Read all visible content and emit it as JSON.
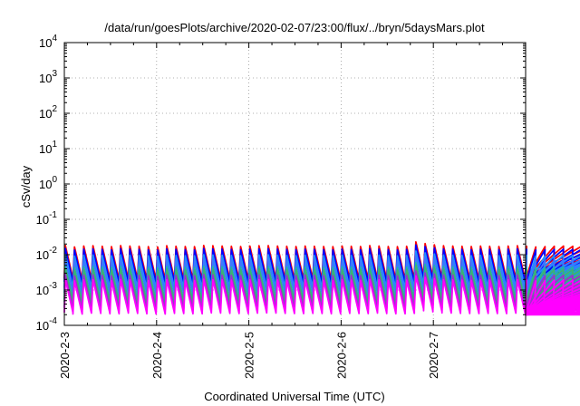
{
  "chart_data": {
    "type": "line",
    "title": "/data/run/goesPlots/archive/2020-02-07/23:00/flux/../bryn/5daysMars.plot",
    "xlabel": "Coordinated Universal Time (UTC)",
    "ylabel": "cSv/day",
    "y_scale": "log",
    "ylim": [
      0.0001,
      10000
    ],
    "xlim": [
      "2020-02-03 00:00",
      "2020-02-08 00:00"
    ],
    "x_ticks": [
      "2020-2-3",
      "2020-2-4",
      "2020-2-5",
      "2020-2-6",
      "2020-2-7"
    ],
    "y_ticks": [
      {
        "value": 0.0001,
        "base": "10",
        "exp": "-4"
      },
      {
        "value": 0.001,
        "base": "10",
        "exp": "-3"
      },
      {
        "value": 0.01,
        "base": "10",
        "exp": "-2"
      },
      {
        "value": 0.1,
        "base": "10",
        "exp": "-1"
      },
      {
        "value": 1,
        "base": "10",
        "exp": "0"
      },
      {
        "value": 10,
        "base": "10",
        "exp": "1"
      },
      {
        "value": 100,
        "base": "10",
        "exp": "2"
      },
      {
        "value": 1000,
        "base": "10",
        "exp": "3"
      },
      {
        "value": 10000,
        "base": "10",
        "exp": "4"
      }
    ],
    "grid": true,
    "legend": "none",
    "sawtooth": {
      "period_hours": 2.4,
      "peaks": [
        0.0182,
        0.0165,
        0.0175,
        0.0178,
        0.0172,
        0.0168,
        0.018,
        0.0175,
        0.0172,
        0.0168,
        0.0165,
        0.0178,
        0.0172,
        0.017,
        0.0168,
        0.0182,
        0.0178,
        0.0175,
        0.0172,
        0.017,
        0.0175,
        0.0178,
        0.018,
        0.0175,
        0.0172,
        0.017,
        0.0175,
        0.0172,
        0.017,
        0.0168,
        0.0175,
        0.0172,
        0.017,
        0.018,
        0.0175,
        0.017,
        0.0168,
        0.0172,
        0.023,
        0.0205,
        0.019,
        0.0178,
        0.0175,
        0.0172,
        0.017,
        0.0175,
        0.0172,
        0.017,
        0.0175,
        0.0178,
        0.0172,
        0.0165,
        0.0168,
        0.0172,
        0.0175,
        0.0172,
        0.0175,
        0.018,
        0.0178,
        0.0175,
        0.0172,
        0.017,
        0.0168,
        0.0172,
        0.0175,
        0.0172,
        0.0175,
        0.0172,
        0.017,
        0.0168,
        0.017,
        0.0175,
        0.0172,
        0.017,
        0.0175,
        0.0172,
        0.017,
        0.0168,
        0.0172,
        0.017,
        0.0168,
        0.0172,
        0.0175,
        0.0172,
        0.017,
        0.0168,
        0.017,
        0.0172,
        0.0175,
        0.0172,
        0.017,
        0.0168,
        0.0165,
        0.0168,
        0.0172,
        0.017,
        0.0168,
        0.0172,
        0.0168,
        0.0165,
        0.0163,
        0.0165,
        0.0165,
        0.0162,
        0.016,
        0.0168,
        0.0165,
        0.016,
        0.0158,
        0.0155
      ],
      "decay_ratio": 0.115
    },
    "series": [
      {
        "color": "#ff0000",
        "scale": 1.0
      },
      {
        "color": "#0000ff",
        "scale": 0.82
      },
      {
        "color": "#1e90ff",
        "scale": 0.55
      },
      {
        "color": "#3c78ff",
        "scale": 0.4
      },
      {
        "color": "#20b2aa",
        "scale": 0.26
      },
      {
        "color": "#3cb371",
        "scale": 0.22
      },
      {
        "color": "#9932cc",
        "scale": 0.15
      },
      {
        "color": "#ff00ff",
        "scale": 0.11
      }
    ]
  }
}
